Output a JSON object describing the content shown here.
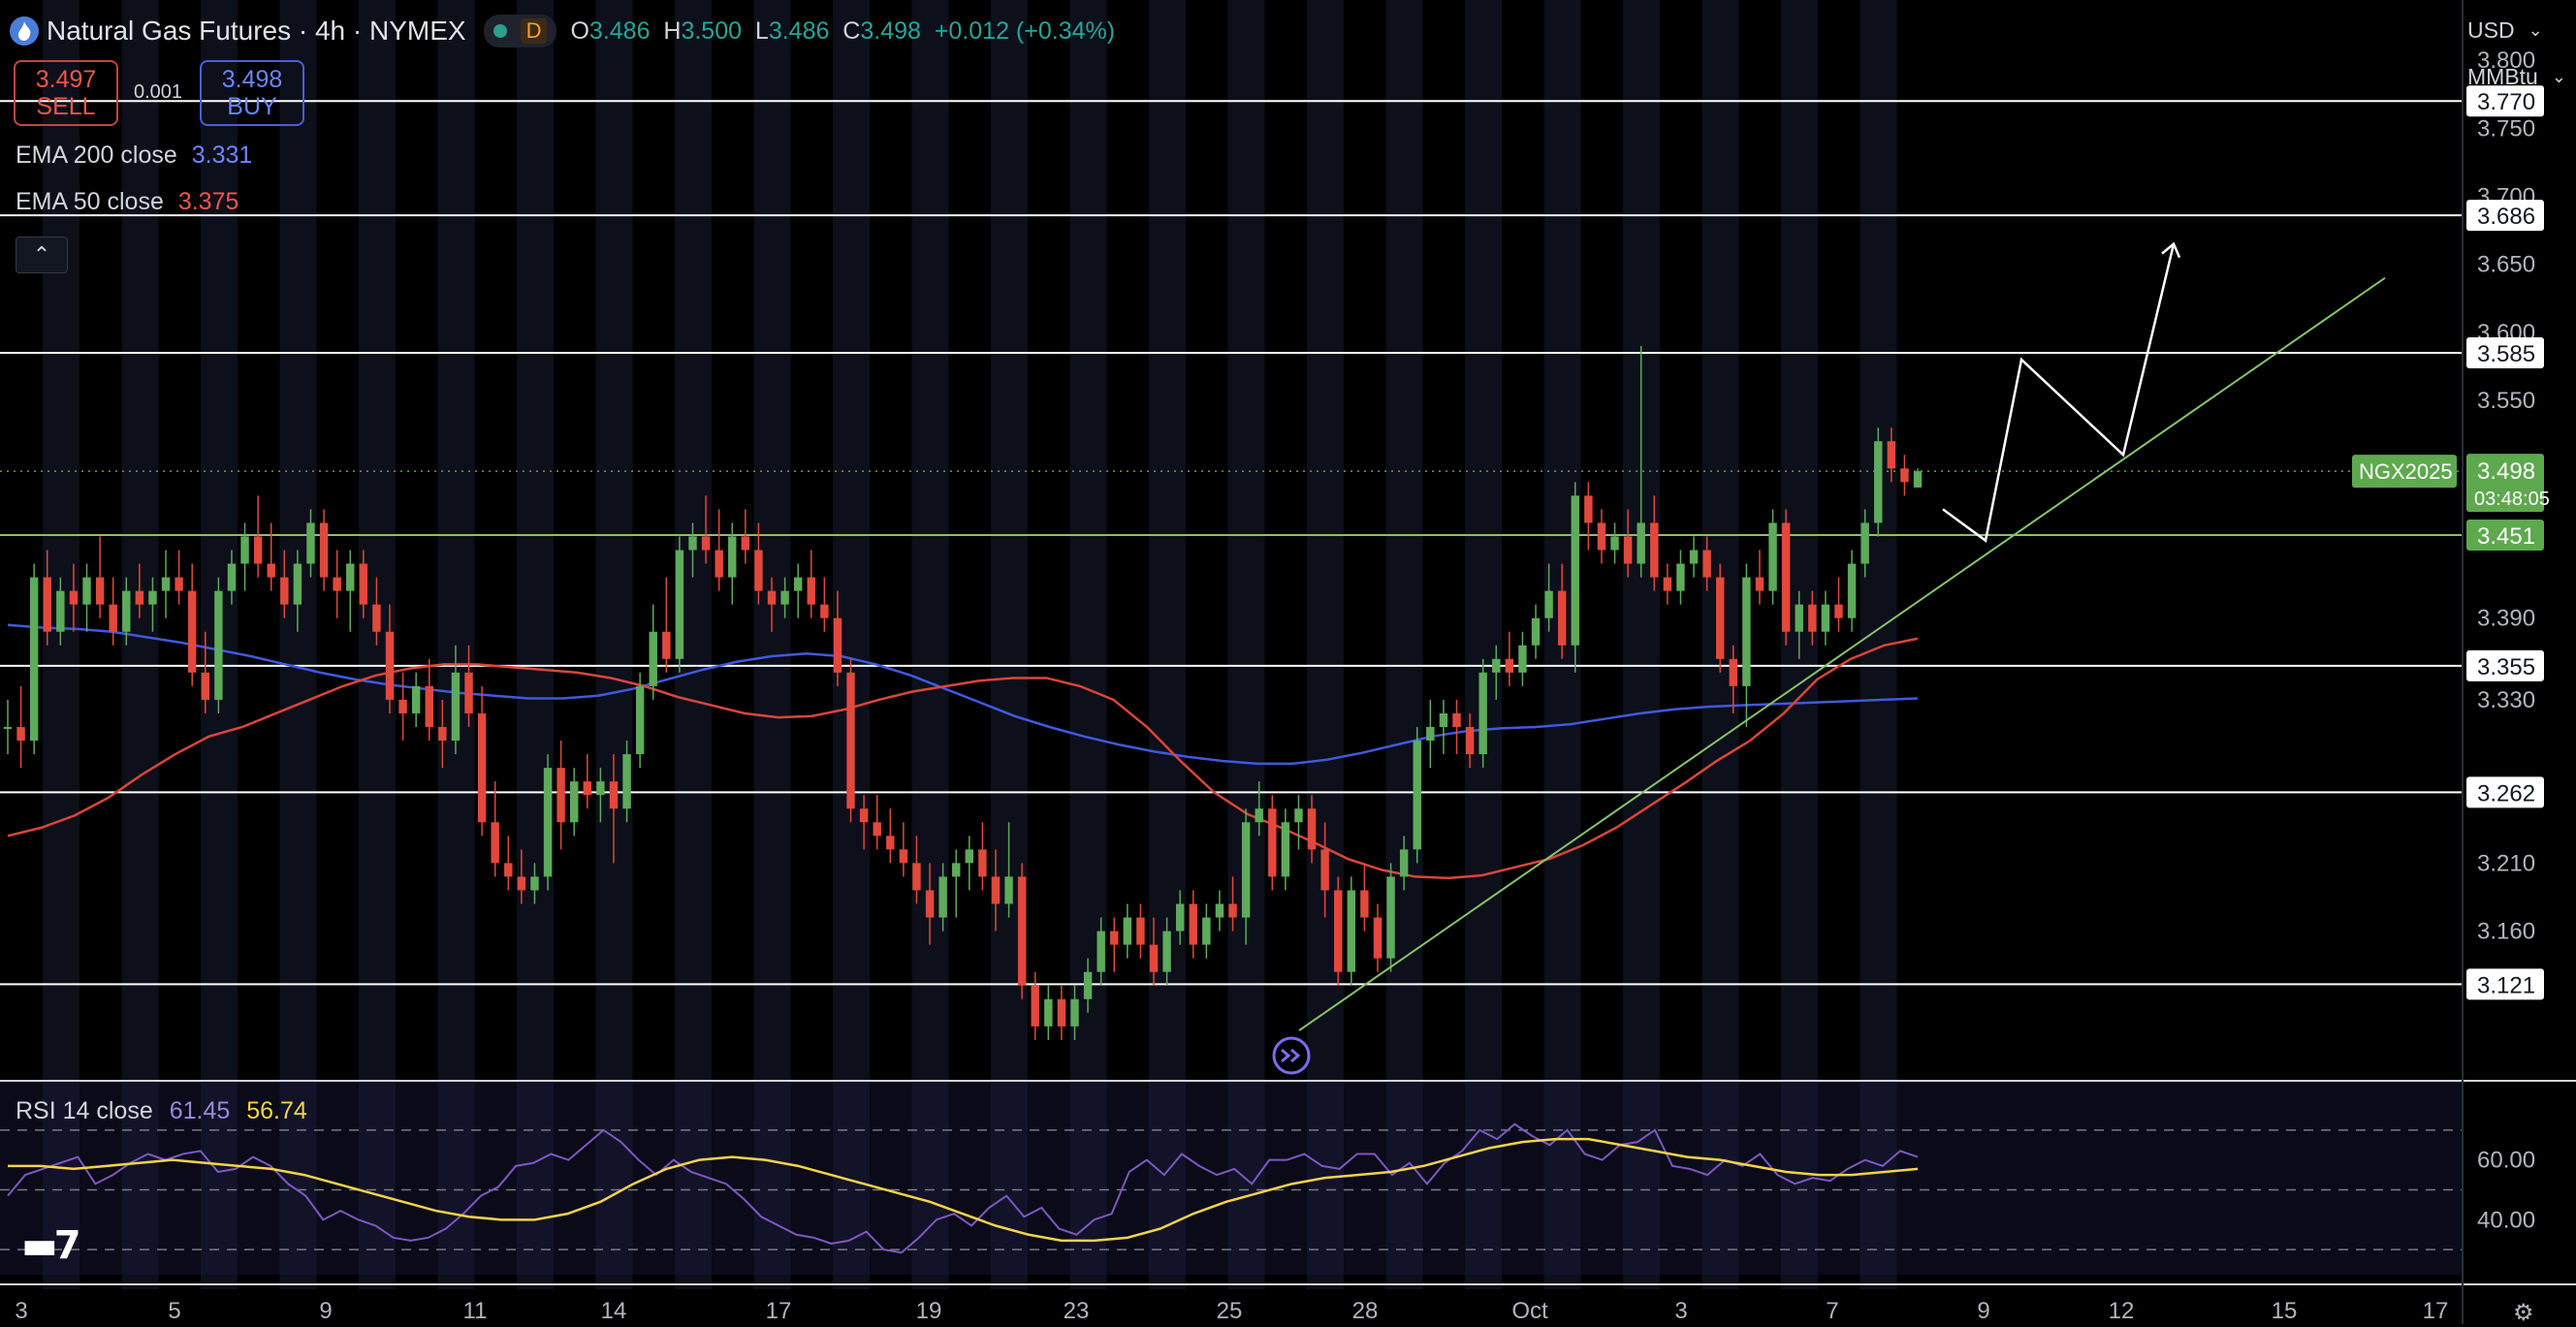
{
  "header": {
    "title": "Natural Gas Futures · 4h · NYMEX",
    "badge": "D",
    "open_label": "O",
    "open": "3.486",
    "high_label": "H",
    "high": "3.500",
    "low_label": "L",
    "low": "3.486",
    "close_label": "C",
    "close": "3.498",
    "change": "+0.012 (+0.34%)"
  },
  "trade": {
    "sell_price": "3.497",
    "sell_label": "SELL",
    "spread": "0.001",
    "buy_price": "3.498",
    "buy_label": "BUY"
  },
  "indicators": {
    "ema200_label": "EMA 200 close",
    "ema200_value": "3.331",
    "ema50_label": "EMA 50 close",
    "ema50_value": "3.375",
    "rsi_label": "RSI 14 close",
    "rsi_value": "61.45",
    "rsi_ma_value": "56.74"
  },
  "axis_controls": {
    "currency": "USD",
    "unit": "MMBtu"
  },
  "colors": {
    "up": "#5dab5b",
    "down": "#e0493c",
    "ema200": "#3f59e0",
    "ema50": "#d9463b",
    "rsi": "#7e57c2",
    "rsi_ma": "#f5d24c",
    "trend": "#84c46a",
    "accent": "#5ea84e"
  },
  "icons": [
    "natural-gas-logo-icon",
    "market-open-dot-icon",
    "collapse-chevron-icon",
    "replay-arrows-icon",
    "tradingview-logo-icon",
    "settings-gear-icon",
    "dropdown-chevron-icon"
  ],
  "chart_data": {
    "type": "candlestick",
    "symbol": "NGX2025",
    "timeframe": "4h",
    "ylim": [
      3.05,
      3.83
    ],
    "price_ticks": [
      "3.800",
      "3.750",
      "3.700",
      "3.650",
      "3.600",
      "3.550",
      "3.390",
      "3.330",
      "3.210",
      "3.160"
    ],
    "x_labels": [
      "3",
      "5",
      "9",
      "11",
      "14",
      "17",
      "19",
      "23",
      "25",
      "28",
      "Oct",
      "3",
      "7",
      "9",
      "12",
      "15",
      "17"
    ],
    "horizontal_levels": [
      3.77,
      3.686,
      3.585,
      3.355,
      3.262,
      3.121
    ],
    "support_level": 3.451,
    "current_price": "3.498",
    "countdown": "03:48:05",
    "candles": [
      [
        3.31,
        3.33,
        3.29,
        3.31
      ],
      [
        3.31,
        3.34,
        3.28,
        3.3
      ],
      [
        3.3,
        3.43,
        3.29,
        3.42
      ],
      [
        3.42,
        3.44,
        3.37,
        3.38
      ],
      [
        3.38,
        3.42,
        3.37,
        3.41
      ],
      [
        3.41,
        3.43,
        3.38,
        3.4
      ],
      [
        3.4,
        3.43,
        3.38,
        3.42
      ],
      [
        3.42,
        3.45,
        3.39,
        3.4
      ],
      [
        3.4,
        3.42,
        3.37,
        3.38
      ],
      [
        3.38,
        3.42,
        3.37,
        3.41
      ],
      [
        3.41,
        3.43,
        3.39,
        3.4
      ],
      [
        3.4,
        3.42,
        3.38,
        3.41
      ],
      [
        3.41,
        3.44,
        3.39,
        3.42
      ],
      [
        3.42,
        3.44,
        3.4,
        3.41
      ],
      [
        3.41,
        3.43,
        3.34,
        3.35
      ],
      [
        3.35,
        3.38,
        3.32,
        3.33
      ],
      [
        3.33,
        3.42,
        3.32,
        3.41
      ],
      [
        3.41,
        3.44,
        3.4,
        3.43
      ],
      [
        3.43,
        3.46,
        3.41,
        3.45
      ],
      [
        3.45,
        3.48,
        3.42,
        3.43
      ],
      [
        3.43,
        3.46,
        3.41,
        3.42
      ],
      [
        3.42,
        3.44,
        3.39,
        3.4
      ],
      [
        3.4,
        3.44,
        3.38,
        3.43
      ],
      [
        3.43,
        3.47,
        3.42,
        3.46
      ],
      [
        3.46,
        3.47,
        3.41,
        3.42
      ],
      [
        3.42,
        3.44,
        3.39,
        3.41
      ],
      [
        3.41,
        3.44,
        3.38,
        3.43
      ],
      [
        3.43,
        3.44,
        3.39,
        3.4
      ],
      [
        3.4,
        3.42,
        3.37,
        3.38
      ],
      [
        3.38,
        3.4,
        3.32,
        3.33
      ],
      [
        3.33,
        3.35,
        3.3,
        3.32
      ],
      [
        3.32,
        3.35,
        3.31,
        3.34
      ],
      [
        3.34,
        3.36,
        3.3,
        3.31
      ],
      [
        3.31,
        3.33,
        3.28,
        3.3
      ],
      [
        3.3,
        3.37,
        3.29,
        3.35
      ],
      [
        3.35,
        3.37,
        3.31,
        3.32
      ],
      [
        3.32,
        3.34,
        3.23,
        3.24
      ],
      [
        3.24,
        3.27,
        3.2,
        3.21
      ],
      [
        3.21,
        3.23,
        3.19,
        3.2
      ],
      [
        3.2,
        3.22,
        3.18,
        3.19
      ],
      [
        3.19,
        3.21,
        3.18,
        3.2
      ],
      [
        3.2,
        3.29,
        3.19,
        3.28
      ],
      [
        3.28,
        3.3,
        3.22,
        3.24
      ],
      [
        3.24,
        3.28,
        3.23,
        3.27
      ],
      [
        3.27,
        3.29,
        3.25,
        3.26
      ],
      [
        3.26,
        3.28,
        3.24,
        3.27
      ],
      [
        3.27,
        3.29,
        3.21,
        3.25
      ],
      [
        3.25,
        3.3,
        3.24,
        3.29
      ],
      [
        3.29,
        3.35,
        3.28,
        3.34
      ],
      [
        3.34,
        3.4,
        3.33,
        3.38
      ],
      [
        3.38,
        3.42,
        3.35,
        3.36
      ],
      [
        3.36,
        3.45,
        3.35,
        3.44
      ],
      [
        3.44,
        3.46,
        3.42,
        3.45
      ],
      [
        3.45,
        3.48,
        3.43,
        3.44
      ],
      [
        3.44,
        3.47,
        3.41,
        3.42
      ],
      [
        3.42,
        3.46,
        3.4,
        3.45
      ],
      [
        3.45,
        3.47,
        3.43,
        3.44
      ],
      [
        3.44,
        3.46,
        3.4,
        3.41
      ],
      [
        3.41,
        3.42,
        3.38,
        3.4
      ],
      [
        3.4,
        3.42,
        3.39,
        3.41
      ],
      [
        3.41,
        3.43,
        3.39,
        3.42
      ],
      [
        3.42,
        3.44,
        3.39,
        3.4
      ],
      [
        3.4,
        3.42,
        3.38,
        3.39
      ],
      [
        3.39,
        3.41,
        3.34,
        3.35
      ],
      [
        3.35,
        3.36,
        3.24,
        3.25
      ],
      [
        3.25,
        3.26,
        3.22,
        3.24
      ],
      [
        3.24,
        3.26,
        3.22,
        3.23
      ],
      [
        3.23,
        3.25,
        3.21,
        3.22
      ],
      [
        3.22,
        3.24,
        3.2,
        3.21
      ],
      [
        3.21,
        3.23,
        3.18,
        3.19
      ],
      [
        3.19,
        3.21,
        3.15,
        3.17
      ],
      [
        3.17,
        3.21,
        3.16,
        3.2
      ],
      [
        3.2,
        3.22,
        3.17,
        3.21
      ],
      [
        3.21,
        3.23,
        3.19,
        3.22
      ],
      [
        3.22,
        3.24,
        3.19,
        3.2
      ],
      [
        3.2,
        3.22,
        3.16,
        3.18
      ],
      [
        3.18,
        3.24,
        3.17,
        3.2
      ],
      [
        3.2,
        3.21,
        3.11,
        3.12
      ],
      [
        3.12,
        3.13,
        3.08,
        3.09
      ],
      [
        3.09,
        3.12,
        3.08,
        3.11
      ],
      [
        3.11,
        3.12,
        3.08,
        3.09
      ],
      [
        3.09,
        3.12,
        3.08,
        3.11
      ],
      [
        3.11,
        3.14,
        3.1,
        3.13
      ],
      [
        3.13,
        3.17,
        3.12,
        3.16
      ],
      [
        3.16,
        3.17,
        3.13,
        3.15
      ],
      [
        3.15,
        3.18,
        3.14,
        3.17
      ],
      [
        3.17,
        3.18,
        3.14,
        3.15
      ],
      [
        3.15,
        3.17,
        3.12,
        3.13
      ],
      [
        3.13,
        3.17,
        3.12,
        3.16
      ],
      [
        3.16,
        3.19,
        3.15,
        3.18
      ],
      [
        3.18,
        3.19,
        3.14,
        3.15
      ],
      [
        3.15,
        3.18,
        3.14,
        3.17
      ],
      [
        3.17,
        3.19,
        3.16,
        3.18
      ],
      [
        3.18,
        3.2,
        3.16,
        3.17
      ],
      [
        3.17,
        3.25,
        3.15,
        3.24
      ],
      [
        3.24,
        3.27,
        3.23,
        3.25
      ],
      [
        3.25,
        3.26,
        3.19,
        3.2
      ],
      [
        3.2,
        3.25,
        3.19,
        3.24
      ],
      [
        3.24,
        3.26,
        3.22,
        3.25
      ],
      [
        3.25,
        3.26,
        3.21,
        3.22
      ],
      [
        3.22,
        3.24,
        3.17,
        3.19
      ],
      [
        3.19,
        3.2,
        3.12,
        3.13
      ],
      [
        3.13,
        3.2,
        3.12,
        3.19
      ],
      [
        3.19,
        3.21,
        3.16,
        3.17
      ],
      [
        3.17,
        3.18,
        3.13,
        3.14
      ],
      [
        3.14,
        3.21,
        3.13,
        3.2
      ],
      [
        3.2,
        3.23,
        3.19,
        3.22
      ],
      [
        3.22,
        3.31,
        3.21,
        3.3
      ],
      [
        3.3,
        3.33,
        3.28,
        3.31
      ],
      [
        3.31,
        3.33,
        3.29,
        3.32
      ],
      [
        3.32,
        3.33,
        3.29,
        3.31
      ],
      [
        3.31,
        3.32,
        3.28,
        3.29
      ],
      [
        3.29,
        3.36,
        3.28,
        3.35
      ],
      [
        3.35,
        3.37,
        3.33,
        3.36
      ],
      [
        3.36,
        3.38,
        3.34,
        3.35
      ],
      [
        3.35,
        3.38,
        3.34,
        3.37
      ],
      [
        3.37,
        3.4,
        3.36,
        3.39
      ],
      [
        3.39,
        3.43,
        3.38,
        3.41
      ],
      [
        3.41,
        3.43,
        3.36,
        3.37
      ],
      [
        3.37,
        3.49,
        3.35,
        3.48
      ],
      [
        3.48,
        3.49,
        3.44,
        3.46
      ],
      [
        3.46,
        3.47,
        3.43,
        3.44
      ],
      [
        3.44,
        3.46,
        3.43,
        3.45
      ],
      [
        3.45,
        3.47,
        3.42,
        3.43
      ],
      [
        3.43,
        3.59,
        3.42,
        3.46
      ],
      [
        3.46,
        3.48,
        3.41,
        3.42
      ],
      [
        3.42,
        3.43,
        3.4,
        3.41
      ],
      [
        3.41,
        3.44,
        3.4,
        3.43
      ],
      [
        3.43,
        3.45,
        3.42,
        3.44
      ],
      [
        3.44,
        3.45,
        3.41,
        3.42
      ],
      [
        3.42,
        3.43,
        3.35,
        3.36
      ],
      [
        3.36,
        3.37,
        3.32,
        3.34
      ],
      [
        3.34,
        3.43,
        3.31,
        3.42
      ],
      [
        3.42,
        3.44,
        3.4,
        3.41
      ],
      [
        3.41,
        3.47,
        3.4,
        3.46
      ],
      [
        3.46,
        3.47,
        3.37,
        3.38
      ],
      [
        3.38,
        3.41,
        3.36,
        3.4
      ],
      [
        3.4,
        3.41,
        3.37,
        3.38
      ],
      [
        3.38,
        3.41,
        3.37,
        3.4
      ],
      [
        3.4,
        3.42,
        3.38,
        3.39
      ],
      [
        3.39,
        3.44,
        3.38,
        3.43
      ],
      [
        3.43,
        3.47,
        3.42,
        3.46
      ],
      [
        3.46,
        3.53,
        3.45,
        3.52
      ],
      [
        3.52,
        3.53,
        3.49,
        3.5
      ],
      [
        3.5,
        3.51,
        3.48,
        3.49
      ],
      [
        3.486,
        3.5,
        3.486,
        3.498
      ]
    ],
    "ema50": [
      3.23,
      3.236,
      3.245,
      3.258,
      3.275,
      3.29,
      3.303,
      3.31,
      3.32,
      3.33,
      3.34,
      3.348,
      3.353,
      3.356,
      3.356,
      3.354,
      3.352,
      3.35,
      3.346,
      3.34,
      3.332,
      3.326,
      3.32,
      3.317,
      3.318,
      3.323,
      3.33,
      3.336,
      3.34,
      3.344,
      3.346,
      3.346,
      3.34,
      3.33,
      3.31,
      3.285,
      3.262,
      3.246,
      3.236,
      3.225,
      3.213,
      3.205,
      3.2,
      3.199,
      3.201,
      3.207,
      3.213,
      3.223,
      3.236,
      3.252,
      3.268,
      3.285,
      3.3,
      3.32,
      3.345,
      3.36,
      3.37,
      3.375
    ],
    "ema200": [
      3.385,
      3.383,
      3.382,
      3.38,
      3.376,
      3.372,
      3.367,
      3.362,
      3.356,
      3.35,
      3.345,
      3.341,
      3.338,
      3.335,
      3.333,
      3.331,
      3.331,
      3.333,
      3.338,
      3.345,
      3.352,
      3.358,
      3.362,
      3.364,
      3.362,
      3.356,
      3.348,
      3.338,
      3.328,
      3.318,
      3.31,
      3.303,
      3.297,
      3.292,
      3.288,
      3.285,
      3.283,
      3.283,
      3.286,
      3.291,
      3.297,
      3.303,
      3.307,
      3.309,
      3.31,
      3.312,
      3.316,
      3.32,
      3.323,
      3.325,
      3.326,
      3.327,
      3.328,
      3.329,
      3.33,
      3.331
    ],
    "trendline": [
      [
        3.087,
        3.64
      ]
    ],
    "projection": [
      3.47,
      3.447,
      3.58,
      3.51,
      3.665
    ],
    "rsi_ticks": [
      "60.00",
      "40.00"
    ],
    "rsi_levels": [
      70,
      50,
      30
    ],
    "rsi": [
      48,
      55,
      57,
      59,
      61,
      52,
      55,
      59,
      62,
      60,
      62,
      63,
      56,
      57,
      61,
      58,
      52,
      48,
      40,
      43,
      40,
      38,
      34,
      33,
      34,
      37,
      42,
      48,
      51,
      58,
      59,
      62,
      60,
      65,
      70,
      66,
      60,
      55,
      60,
      56,
      54,
      52,
      47,
      41,
      38,
      35,
      34,
      32,
      33,
      36,
      30,
      29,
      34,
      40,
      42,
      38,
      44,
      48,
      41,
      44,
      37,
      35,
      40,
      42,
      56,
      60,
      55,
      62,
      58,
      55,
      57,
      52,
      60,
      60,
      62,
      58,
      57,
      62,
      62,
      55,
      59,
      52,
      59,
      63,
      70,
      67,
      72,
      68,
      65,
      70,
      62,
      60,
      65,
      66,
      70,
      58,
      57,
      55,
      60,
      58,
      62,
      55,
      52,
      54,
      53,
      57,
      60,
      58,
      63,
      61
    ],
    "rsi_ma": [
      58,
      58,
      57,
      58,
      59,
      60,
      59,
      58,
      57,
      55,
      52,
      49,
      46,
      43,
      41,
      40,
      40,
      42,
      46,
      52,
      57,
      60,
      61,
      60,
      58,
      55,
      52,
      49,
      46,
      42,
      38,
      35,
      33,
      33,
      34,
      37,
      42,
      46,
      49,
      52,
      54,
      55,
      56,
      58,
      61,
      64,
      66,
      67,
      67,
      65,
      63,
      61,
      60,
      58,
      56,
      55,
      55,
      56,
      57
    ]
  }
}
